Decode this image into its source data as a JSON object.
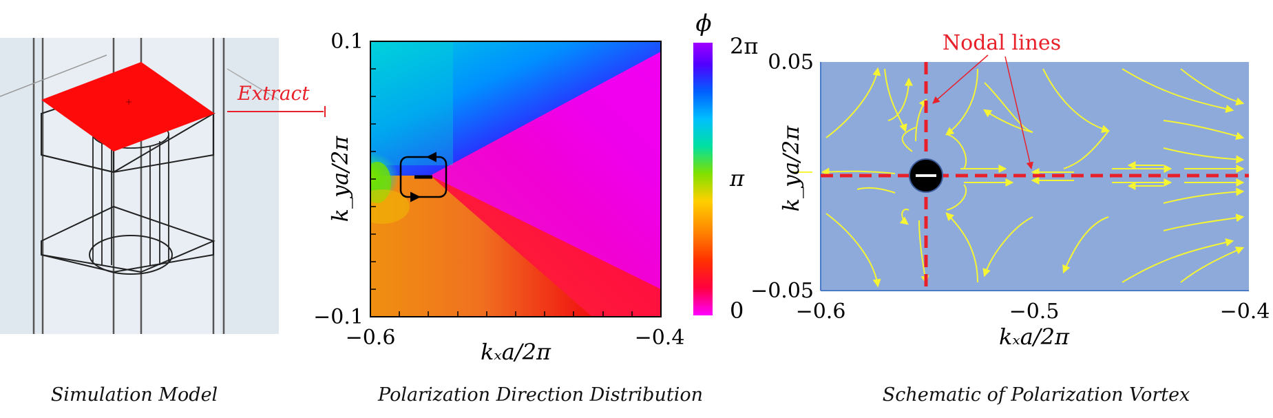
{
  "panel_a": {
    "extract_label": "Extract",
    "caption": "Simulation Model"
  },
  "panel_b": {
    "y_top": "0.1",
    "y_bottom": "−0.1",
    "x_left": "−0.6",
    "x_right": "−0.4",
    "xlabel": "kₓa/2π",
    "ylabel": "k_ya/2π",
    "colorbar_title": "ϕ",
    "colorbar_top": "2π",
    "colorbar_mid": "π",
    "colorbar_bottom": "0",
    "caption": "Polarization Direction Distribution",
    "colors": [
      "#ff00d0",
      "#ff0000",
      "#ff8000",
      "#ffd700",
      "#70e000",
      "#00e0c0",
      "#00a0ff",
      "#0040ff",
      "#7000ff",
      "#ff00ff"
    ]
  },
  "panel_c": {
    "y_top": "0.05",
    "y_bottom": "−0.05",
    "x_ticks": [
      "−0.6",
      "−0.5",
      "−0.4"
    ],
    "xlabel": "kₓa/2π",
    "ylabel": "k_ya/2π",
    "annotation": "Nodal lines",
    "caption": "Schematic of Polarization Vortex",
    "bg_color": "#8eaadb",
    "flow_color": "#f5f534",
    "nodal_color": "#e8202a"
  }
}
